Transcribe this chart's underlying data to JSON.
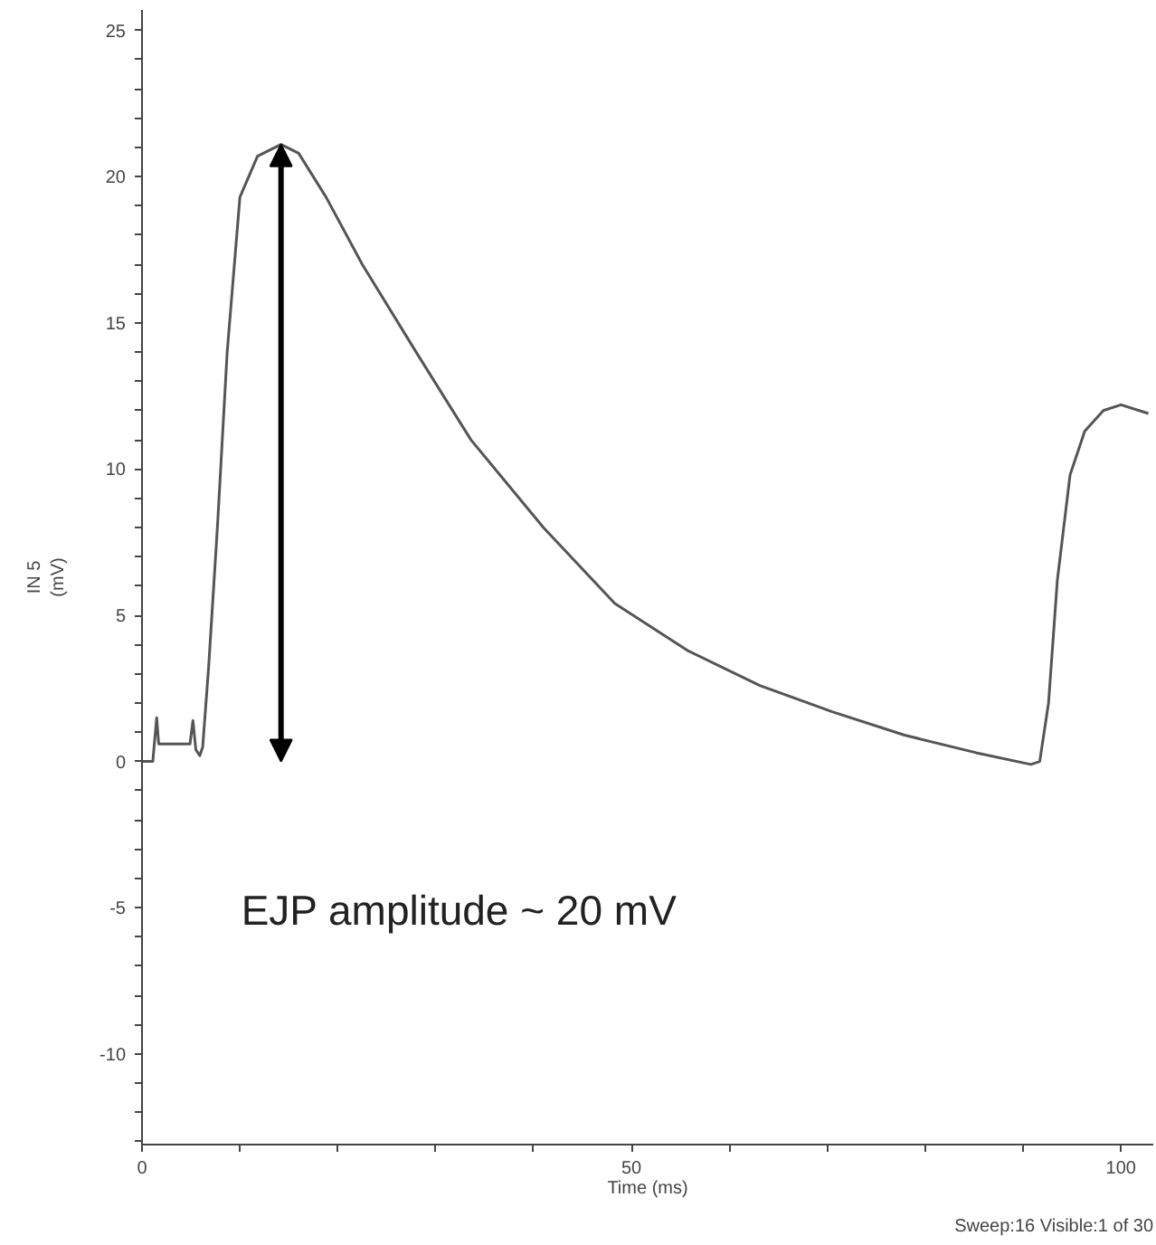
{
  "chart_data": {
    "type": "line",
    "xlabel": "Time (ms)",
    "ylabel": "IN 5\n(mV)",
    "x": [
      0,
      1.1,
      1.5,
      1.7,
      2.0,
      4.9,
      5.2,
      5.5,
      5.9,
      6.2,
      6.8,
      7.7,
      8.7,
      10,
      11.8,
      14.2,
      16,
      18.8,
      22.5,
      28,
      33.6,
      41,
      48.3,
      55.7,
      63.1,
      70.5,
      77.9,
      85.2,
      90.8,
      91.7,
      92.6,
      93.5,
      94.8,
      96.3,
      98.2,
      100,
      102.8
    ],
    "series": [
      {
        "color": "#555555",
        "values": [
          0,
          0,
          1.5,
          0.6,
          0.6,
          0.6,
          1.4,
          0.4,
          0.2,
          0.5,
          3.2,
          8.0,
          14,
          19.3,
          20.7,
          21.1,
          20.8,
          19.3,
          17,
          14,
          11,
          8,
          5.4,
          3.8,
          2.6,
          1.7,
          0.9,
          0.3,
          -0.1,
          0,
          2,
          6.2,
          9.8,
          11.3,
          12.0,
          12.2,
          11.9
        ]
      }
    ],
    "xlim": [
      0,
      103.3
    ],
    "ylim": [
      -13.1,
      25.7
    ],
    "xticks": [
      0,
      {
        "value": 10,
        "label": null
      },
      {
        "value": 20,
        "label": null
      },
      {
        "value": 30,
        "label": null
      },
      {
        "value": 40,
        "label": null
      },
      50,
      {
        "value": 60,
        "label": null
      },
      {
        "value": 70,
        "label": null
      },
      {
        "value": 80,
        "label": null
      },
      {
        "value": 90,
        "label": null
      },
      100
    ],
    "yticks": [
      {
        "value": -13,
        "label": null
      },
      {
        "value": -12,
        "label": null
      },
      {
        "value": -11,
        "label": null
      },
      -10,
      {
        "value": -9,
        "label": null
      },
      {
        "value": -8,
        "label": null
      },
      {
        "value": -7,
        "label": null
      },
      {
        "value": -6,
        "label": null
      },
      -5,
      {
        "value": -4,
        "label": null
      },
      {
        "value": -3,
        "label": null
      },
      {
        "value": -2,
        "label": null
      },
      {
        "value": -1,
        "label": null
      },
      0,
      {
        "value": 1,
        "label": null
      },
      {
        "value": 2,
        "label": null
      },
      {
        "value": 3,
        "label": null
      },
      {
        "value": 4,
        "label": null
      },
      5,
      {
        "value": 6,
        "label": null
      },
      {
        "value": 7,
        "label": null
      },
      {
        "value": 8,
        "label": null
      },
      {
        "value": 9,
        "label": null
      },
      10,
      {
        "value": 11,
        "label": null
      },
      {
        "value": 12,
        "label": null
      },
      {
        "value": 13,
        "label": null
      },
      {
        "value": 14,
        "label": null
      },
      15,
      {
        "value": 16,
        "label": null
      },
      {
        "value": 17,
        "label": null
      },
      {
        "value": 18,
        "label": null
      },
      {
        "value": 19,
        "label": null
      },
      20,
      {
        "value": 21,
        "label": null
      },
      {
        "value": 22,
        "label": null
      },
      {
        "value": 23,
        "label": null
      },
      {
        "value": 24,
        "label": null
      },
      25
    ],
    "grid": false,
    "annotations": [
      "EJP amplitude ~ 20 mV",
      "Sweep:16 Visible:1 of 30"
    ]
  }
}
